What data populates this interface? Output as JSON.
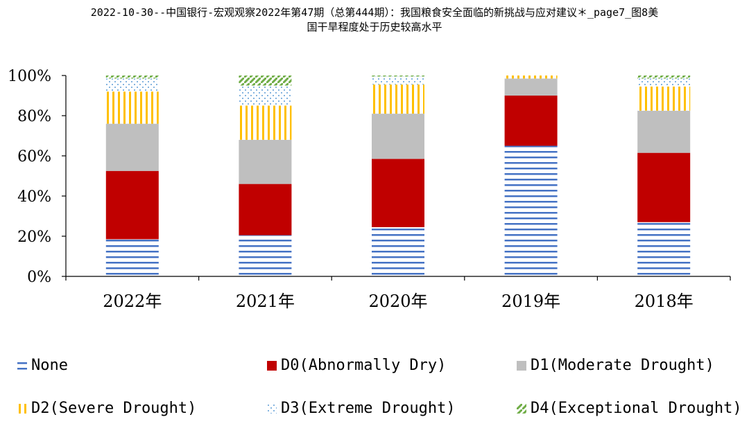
{
  "title": {
    "line1": "2022-10-30--中国银行-宏观观察2022年第47期（总第444期）：我国粮食安全面临的新挑战与应对建议＊_page7_图8美",
    "line2": "国干旱程度处于历史较高水平"
  },
  "chart_data": {
    "type": "bar",
    "stacked": true,
    "categories": [
      "2022年",
      "2021年",
      "2020年",
      "2019年",
      "2018年"
    ],
    "y_ticks": [
      "0%",
      "20%",
      "40%",
      "60%",
      "80%",
      "100%"
    ],
    "ylim": [
      0,
      100
    ],
    "series": [
      {
        "name": "None",
        "values": [
          18.5,
          20.5,
          24.5,
          65,
          27
        ],
        "color": "#4472C4",
        "pattern": "hlines"
      },
      {
        "name": "D0(Abnormally Dry)",
        "values": [
          34,
          25.5,
          34,
          25,
          34.5
        ],
        "color": "#C00000",
        "pattern": "solid"
      },
      {
        "name": "D1(Moderate Drought)",
        "values": [
          23.5,
          22,
          22.5,
          8.5,
          21
        ],
        "color": "#BFBFBF",
        "pattern": "solid"
      },
      {
        "name": "D2(Severe Drought)",
        "values": [
          16,
          17,
          14.5,
          1.5,
          12
        ],
        "color": "#FFC000",
        "pattern": "vlines"
      },
      {
        "name": "D3(Extreme Drought)",
        "values": [
          6.5,
          10,
          4,
          0,
          4
        ],
        "color": "#5B9BD5",
        "pattern": "dots"
      },
      {
        "name": "D4(Exceptional Drought)",
        "values": [
          1.5,
          5,
          0.5,
          0,
          1.5
        ],
        "color": "#70AD47",
        "pattern": "diag"
      }
    ],
    "legend": "bottom",
    "grid": false
  }
}
